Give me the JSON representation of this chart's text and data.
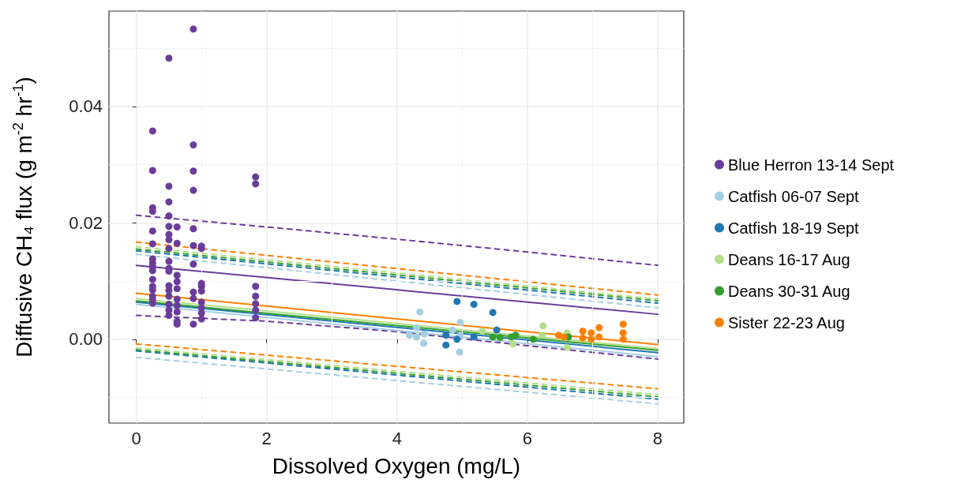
{
  "chart_data": {
    "type": "scatter",
    "xlabel": "Dissolved Oxygen (mg/L)",
    "ylabel": "Diffusive CH₄ flux (g m$^{-2}$ hr$^{-1}$)",
    "xlim": [
      -0.42,
      8.4
    ],
    "xticks": [
      0,
      2,
      4,
      6,
      8
    ],
    "ylim": [
      -0.0144,
      0.0564
    ],
    "yticks": [
      {
        "value": 0,
        "label": "0.00"
      },
      0.02,
      0.04
    ],
    "grid": true,
    "legend": "right",
    "marker": "circle",
    "series": [
      {
        "name": "Blue Herron 13-14 Sept",
        "color": "#6a3d9a",
        "x": [
          0.25,
          0.25,
          0.25,
          0.25,
          0.25,
          0.25,
          0.25,
          0.25,
          0.25,
          0.25,
          0.25,
          0.25,
          0.25,
          0.25,
          0.25,
          0.25,
          0.5,
          0.5,
          0.5,
          0.5,
          0.5,
          0.5,
          0.5,
          0.5,
          0.5,
          0.5,
          0.5,
          0.5,
          0.5,
          0.5,
          0.5,
          0.5,
          0.5,
          0.625,
          0.625,
          0.625,
          0.625,
          0.625,
          0.625,
          0.625,
          0.625,
          0.625,
          0.625,
          0.875,
          0.875,
          0.875,
          0.875,
          0.875,
          0.875,
          0.875,
          0.875,
          0.875,
          0.875,
          1.0,
          1.0,
          1.0,
          1.0,
          1.0,
          1.0,
          1.0,
          1.0,
          1.0,
          1.83,
          1.83,
          1.83,
          1.83,
          1.83,
          1.83,
          1.83
        ],
        "values": [
          0.0358,
          0.029,
          0.0226,
          0.022,
          0.0186,
          0.0164,
          0.0138,
          0.0131,
          0.0125,
          0.0118,
          0.0103,
          0.0091,
          0.0085,
          0.0074,
          0.0068,
          0.0062,
          0.0483,
          0.0263,
          0.0236,
          0.0212,
          0.0194,
          0.018,
          0.0171,
          0.0156,
          0.0134,
          0.0122,
          0.0117,
          0.0092,
          0.0084,
          0.0074,
          0.006,
          0.005,
          0.0041,
          0.0193,
          0.0165,
          0.011,
          0.0099,
          0.0087,
          0.0069,
          0.0058,
          0.0047,
          0.0031,
          0.0026,
          0.0533,
          0.0334,
          0.0289,
          0.0256,
          0.019,
          0.0161,
          0.0129,
          0.0081,
          0.007,
          0.0026,
          0.016,
          0.0156,
          0.0096,
          0.0091,
          0.0083,
          0.0064,
          0.0054,
          0.0045,
          0.0035,
          0.0279,
          0.0267,
          0.0091,
          0.0074,
          0.0061,
          0.005,
          0.0037
        ]
      },
      {
        "name": "Catfish 06-07 Sept",
        "color": "#a6cee3",
        "x": [
          4.35,
          4.19,
          4.3,
          4.3,
          4.41,
          4.42,
          4.97,
          4.85,
          4.96,
          4.97
        ],
        "values": [
          0.0047,
          0.0007,
          0.002,
          0.0004,
          -0.0007,
          0.0009,
          0.0029,
          0.0016,
          -0.0022,
          0.0007
        ]
      },
      {
        "name": "Catfish 18-19 Sept",
        "color": "#1f78b4",
        "x": [
          4.92,
          5.18,
          5.47,
          4.75,
          4.75,
          4.92,
          5.18,
          5.53
        ],
        "values": [
          0.0065,
          0.006,
          0.0046,
          0.0007,
          -0.001,
          0.0,
          0.0004,
          0.0016
        ]
      },
      {
        "name": "Deans 16-17 Aug",
        "color": "#b2df8a",
        "x": [
          5.31,
          5.78,
          6.24,
          6.23,
          6.61,
          6.61
        ],
        "values": [
          0.0014,
          -0.0008,
          0.0023,
          0.0007,
          0.0011,
          -0.0014
        ]
      },
      {
        "name": "Deans 30-31 Aug",
        "color": "#33a02c",
        "x": [
          5.47,
          5.58,
          5.75,
          5.82,
          6.09,
          6.63
        ],
        "values": [
          0.0004,
          0.0003,
          0.0004,
          0.0007,
          0.0,
          0.0004
        ]
      },
      {
        "name": "Sister 22-23 Aug",
        "color": "#ff7f00",
        "x": [
          6.48,
          6.56,
          6.85,
          6.85,
          6.98,
          6.98,
          7.1,
          7.1,
          7.47,
          7.47,
          7.47
        ],
        "values": [
          0.0007,
          0.0004,
          0.0014,
          0.0002,
          0.0011,
          0.0,
          0.002,
          0.0004,
          0.0026,
          0.0011,
          0.0
        ]
      },
      {
        "type": "line",
        "marker": "none",
        "color": "#6a3d9a",
        "x": [
          0,
          8
        ],
        "values": [
          0.0127,
          0.0043
        ]
      },
      {
        "type": "line",
        "marker": "none",
        "line_style": "dashed",
        "color": "#6a3d9a",
        "x": [
          0,
          2,
          4,
          6,
          8
        ],
        "values": [
          0.0213,
          0.0193,
          0.0172,
          0.015,
          0.0127
        ]
      },
      {
        "type": "line",
        "marker": "none",
        "line_style": "dashed",
        "color": "#6a3d9a",
        "x": [
          0,
          2,
          4,
          6,
          8
        ],
        "values": [
          0.0041,
          0.0031,
          0.0013,
          -0.0011,
          -0.0034
        ]
      },
      {
        "type": "line",
        "marker": "none",
        "color": "#a6cee3",
        "x": [
          0,
          8
        ],
        "values": [
          0.006,
          -0.003
        ]
      },
      {
        "type": "line",
        "marker": "none",
        "line_style": "dashed",
        "color": "#a6cee3",
        "x": [
          0,
          8
        ],
        "values": [
          0.0146,
          0.0054
        ]
      },
      {
        "type": "line",
        "marker": "none",
        "line_style": "dashed",
        "color": "#a6cee3",
        "x": [
          0,
          8
        ],
        "values": [
          -0.0031,
          -0.0111
        ]
      },
      {
        "type": "line",
        "marker": "none",
        "color": "#1f78b4",
        "x": [
          0,
          8
        ],
        "values": [
          0.0064,
          -0.0023
        ]
      },
      {
        "type": "line",
        "marker": "none",
        "line_style": "dashed",
        "color": "#1f78b4",
        "x": [
          0,
          8
        ],
        "values": [
          0.0152,
          0.0062
        ]
      },
      {
        "type": "line",
        "marker": "none",
        "line_style": "dashed",
        "color": "#1f78b4",
        "x": [
          0,
          8
        ],
        "values": [
          -0.002,
          -0.0103
        ]
      },
      {
        "type": "line",
        "marker": "none",
        "color": "#b2df8a",
        "x": [
          0,
          8
        ],
        "values": [
          0.007,
          -0.0016
        ]
      },
      {
        "type": "line",
        "marker": "none",
        "line_style": "dashed",
        "color": "#b2df8a",
        "x": [
          0,
          8
        ],
        "values": [
          0.0159,
          0.0069
        ]
      },
      {
        "type": "line",
        "marker": "none",
        "line_style": "dashed",
        "color": "#b2df8a",
        "x": [
          0,
          8
        ],
        "values": [
          -0.0015,
          -0.0095
        ]
      },
      {
        "type": "line",
        "marker": "none",
        "color": "#33a02c",
        "x": [
          0,
          8
        ],
        "values": [
          0.0066,
          -0.0019
        ]
      },
      {
        "type": "line",
        "marker": "none",
        "line_style": "dashed",
        "color": "#33a02c",
        "x": [
          0,
          8
        ],
        "values": [
          0.0155,
          0.0066
        ]
      },
      {
        "type": "line",
        "marker": "none",
        "line_style": "dashed",
        "color": "#33a02c",
        "x": [
          0,
          8
        ],
        "values": [
          -0.0018,
          -0.0099
        ]
      },
      {
        "type": "line",
        "marker": "none",
        "color": "#ff7f00",
        "x": [
          0,
          8
        ],
        "values": [
          0.0079,
          -0.0009
        ]
      },
      {
        "type": "line",
        "marker": "none",
        "line_style": "dashed",
        "color": "#ff7f00",
        "x": [
          0,
          8
        ],
        "values": [
          0.0167,
          0.0076
        ]
      },
      {
        "type": "line",
        "marker": "none",
        "line_style": "dashed",
        "color": "#ff7f00",
        "x": [
          0,
          8
        ],
        "values": [
          -0.0008,
          -0.0085
        ]
      }
    ]
  }
}
